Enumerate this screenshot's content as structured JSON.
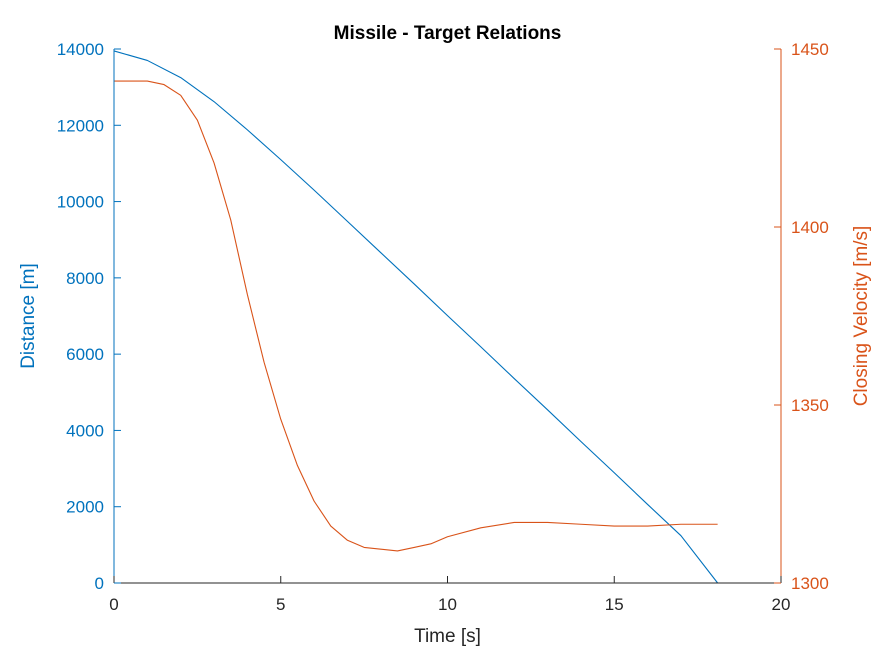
{
  "chart_data": {
    "type": "line",
    "title": "Missile - Target Relations",
    "xlabel": "Time [s]",
    "xlim": [
      0,
      20
    ],
    "xticks": [
      0,
      5,
      10,
      15,
      20
    ],
    "xtick_labels": [
      "0",
      "5",
      "10",
      "15",
      "20"
    ],
    "grid": false,
    "legend": "none",
    "left_axis": {
      "label": "Distance [m]",
      "color": "#0072BD",
      "ylim": [
        0,
        14000
      ],
      "ticks": [
        0,
        2000,
        4000,
        6000,
        8000,
        10000,
        12000,
        14000
      ],
      "tick_labels": [
        "0",
        "2000",
        "4000",
        "6000",
        "8000",
        "10000",
        "12000",
        "14000"
      ]
    },
    "right_axis": {
      "label": "Closing Velocity [m/s]",
      "color": "#D95319",
      "ylim": [
        1300,
        1450
      ],
      "ticks": [
        1300,
        1350,
        1400,
        1450
      ],
      "tick_labels": [
        "1300",
        "1350",
        "1400",
        "1450"
      ]
    },
    "series": [
      {
        "axis": "left",
        "color": "#0072BD",
        "x": [
          0,
          1,
          2,
          3,
          4,
          5,
          6,
          7,
          8,
          9,
          10,
          11,
          12,
          13,
          14,
          15,
          16,
          17,
          18.1
        ],
        "y": [
          13950,
          13700,
          13250,
          12620,
          11880,
          11100,
          10300,
          9480,
          8660,
          7840,
          7010,
          6190,
          5360,
          4540,
          3710,
          2890,
          2060,
          1240,
          0
        ]
      },
      {
        "axis": "right",
        "color": "#D95319",
        "x": [
          0,
          1,
          1.5,
          2,
          2.5,
          3,
          3.5,
          4,
          4.5,
          5,
          5.5,
          6,
          6.5,
          7,
          7.5,
          8,
          8.5,
          9,
          9.5,
          10,
          11,
          12,
          13,
          14,
          15,
          16,
          17,
          18.1
        ],
        "y": [
          1441,
          1441,
          1440,
          1437,
          1430,
          1418,
          1402,
          1381,
          1362,
          1346,
          1333,
          1323,
          1316,
          1312,
          1310,
          1309.5,
          1309,
          1310,
          1311,
          1313,
          1315.5,
          1317,
          1317,
          1316.5,
          1316,
          1316,
          1316.5,
          1316.5
        ]
      }
    ]
  }
}
